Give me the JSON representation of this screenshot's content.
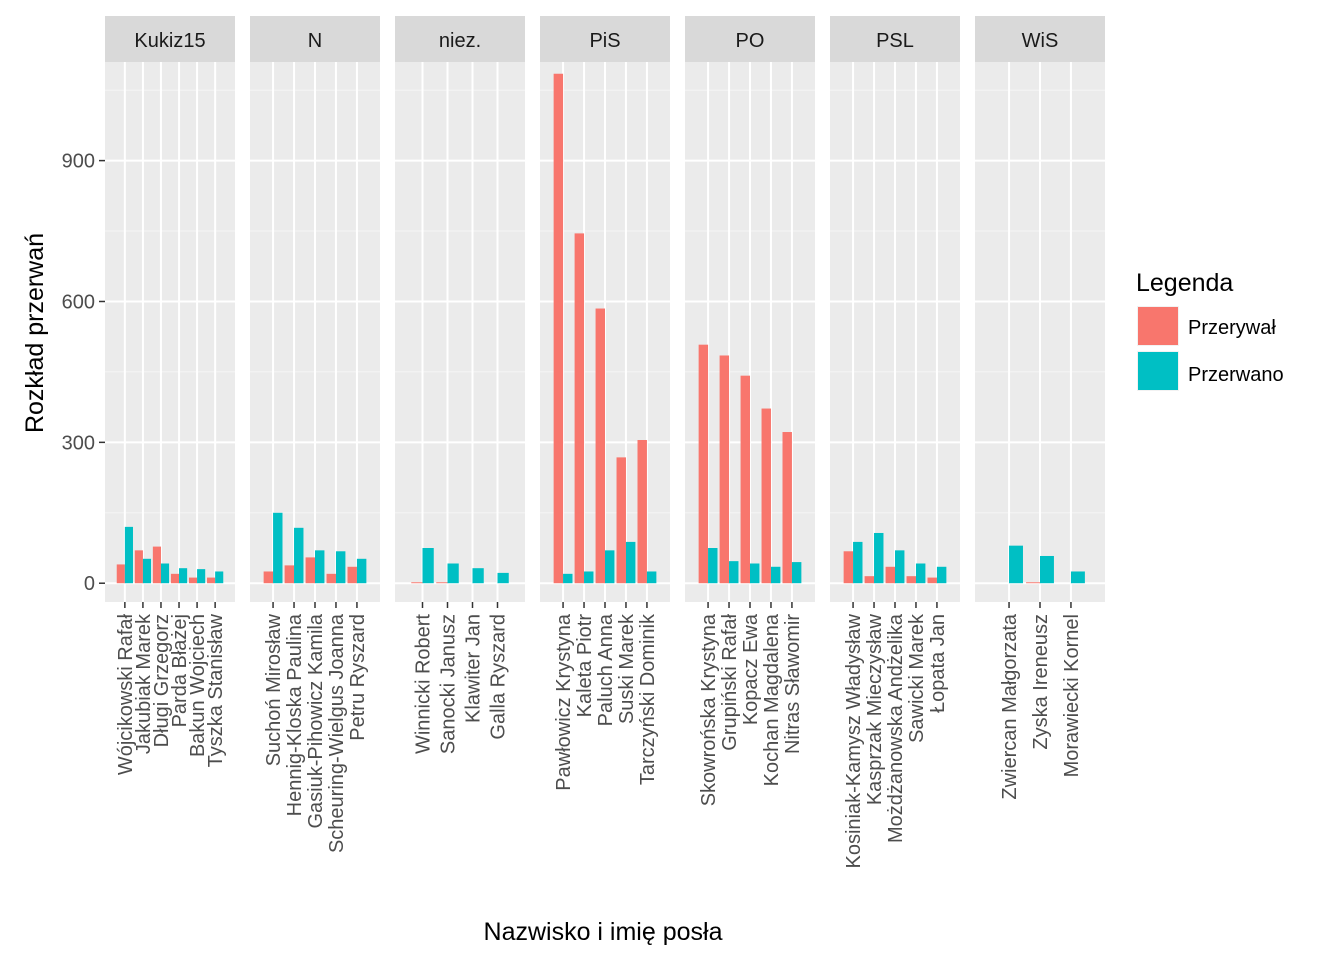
{
  "chart_data": {
    "type": "bar",
    "facet_by": "party",
    "xlabel": "Nazwisko i imię posła",
    "ylabel": "Rozkład przerwań",
    "ylim": [
      -40,
      1110
    ],
    "yticks": [
      0,
      300,
      600,
      900
    ],
    "grid": true,
    "legend": {
      "title": "Legenda",
      "position": "right",
      "entries": [
        {
          "name": "Przerywał",
          "color": "#F8766D"
        },
        {
          "name": "Przerwano",
          "color": "#00BFC4"
        }
      ]
    },
    "facets": [
      {
        "label": "Kukiz15",
        "members": [
          {
            "name": "Wójcikowski Rafał",
            "values": [
              40,
              120
            ]
          },
          {
            "name": "Jakubiak Marek",
            "values": [
              70,
              52
            ]
          },
          {
            "name": "Długi Grzegorz",
            "values": [
              78,
              42
            ]
          },
          {
            "name": "Parda Błażej",
            "values": [
              20,
              32
            ]
          },
          {
            "name": "Bakun Wojciech",
            "values": [
              12,
              30
            ]
          },
          {
            "name": "Tyszka Stanisław",
            "values": [
              12,
              25
            ]
          }
        ]
      },
      {
        "label": "N",
        "members": [
          {
            "name": "Suchoń Mirosław",
            "values": [
              25,
              150
            ]
          },
          {
            "name": "Hennig-Kloska Paulina",
            "values": [
              38,
              118
            ]
          },
          {
            "name": "Gasiuk-Pihowicz Kamila",
            "values": [
              55,
              70
            ]
          },
          {
            "name": "Scheuring-Wielgus Joanna",
            "values": [
              20,
              68
            ]
          },
          {
            "name": "Petru Ryszard",
            "values": [
              35,
              52
            ]
          }
        ]
      },
      {
        "label": "niez.",
        "members": [
          {
            "name": "Winnicki Robert",
            "values": [
              2,
              75
            ]
          },
          {
            "name": "Sanocki Janusz",
            "values": [
              2,
              42
            ]
          },
          {
            "name": "Klawiter Jan",
            "values": [
              0,
              32
            ]
          },
          {
            "name": "Galla Ryszard",
            "values": [
              0,
              22
            ]
          }
        ]
      },
      {
        "label": "PiS",
        "members": [
          {
            "name": "Pawłowicz Krystyna",
            "values": [
              1085,
              20
            ]
          },
          {
            "name": "Kaleta Piotr",
            "values": [
              745,
              25
            ]
          },
          {
            "name": "Paluch Anna",
            "values": [
              585,
              70
            ]
          },
          {
            "name": "Suski Marek",
            "values": [
              268,
              88
            ]
          },
          {
            "name": "Tarczyński Dominik",
            "values": [
              305,
              25
            ]
          }
        ]
      },
      {
        "label": "PO",
        "members": [
          {
            "name": "Skowrońska Krystyna",
            "values": [
              508,
              75
            ]
          },
          {
            "name": "Grupiński Rafał",
            "values": [
              485,
              47
            ]
          },
          {
            "name": "Kopacz Ewa",
            "values": [
              442,
              42
            ]
          },
          {
            "name": "Kochan Magdalena",
            "values": [
              372,
              35
            ]
          },
          {
            "name": "Nitras Sławomir",
            "values": [
              322,
              45
            ]
          }
        ]
      },
      {
        "label": "PSL",
        "members": [
          {
            "name": "Kosiniak-Kamysz Władysław",
            "values": [
              68,
              88
            ]
          },
          {
            "name": "Kasprzak Mieczysław",
            "values": [
              15,
              107
            ]
          },
          {
            "name": "Możdżanowska Andżelika",
            "values": [
              35,
              70
            ]
          },
          {
            "name": "Sawicki Marek",
            "values": [
              15,
              42
            ]
          },
          {
            "name": "Łopata Jan",
            "values": [
              12,
              35
            ]
          }
        ]
      },
      {
        "label": "WiS",
        "members": [
          {
            "name": "Zwiercan Małgorzata",
            "values": [
              0,
              80
            ]
          },
          {
            "name": "Zyska Ireneusz",
            "values": [
              2,
              58
            ]
          },
          {
            "name": "Morawiecki Kornel",
            "values": [
              0,
              25
            ]
          }
        ]
      }
    ]
  }
}
